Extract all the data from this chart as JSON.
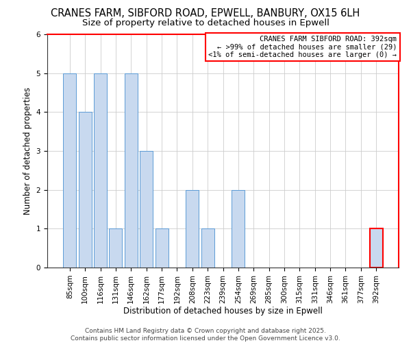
{
  "title": "CRANES FARM, SIBFORD ROAD, EPWELL, BANBURY, OX15 6LH",
  "subtitle": "Size of property relative to detached houses in Epwell",
  "xlabel": "Distribution of detached houses by size in Epwell",
  "ylabel": "Number of detached properties",
  "categories": [
    "85sqm",
    "100sqm",
    "116sqm",
    "131sqm",
    "146sqm",
    "162sqm",
    "177sqm",
    "192sqm",
    "208sqm",
    "223sqm",
    "239sqm",
    "254sqm",
    "269sqm",
    "285sqm",
    "300sqm",
    "315sqm",
    "331sqm",
    "346sqm",
    "361sqm",
    "377sqm",
    "392sqm"
  ],
  "values": [
    5,
    4,
    5,
    1,
    5,
    3,
    1,
    0,
    2,
    1,
    0,
    2,
    0,
    0,
    0,
    0,
    0,
    0,
    0,
    0,
    1
  ],
  "bar_color": "#c8d9ef",
  "bar_edge_color": "#5b9bd5",
  "highlight_index": 20,
  "highlight_bar_edge_color": "#ff0000",
  "annotation_line1": "CRANES FARM SIBFORD ROAD: 392sqm",
  "annotation_line2": "← >99% of detached houses are smaller (29)",
  "annotation_line3": "<1% of semi-detached houses are larger (0) →",
  "ylim": [
    0,
    6
  ],
  "yticks": [
    0,
    1,
    2,
    3,
    4,
    5,
    6
  ],
  "background_color": "#ffffff",
  "footer": "Contains HM Land Registry data © Crown copyright and database right 2025.\nContains public sector information licensed under the Open Government Licence v3.0.",
  "title_fontsize": 10.5,
  "subtitle_fontsize": 9.5,
  "axis_label_fontsize": 8.5,
  "tick_fontsize": 7.5,
  "annotation_fontsize": 7.5,
  "footer_fontsize": 6.5
}
